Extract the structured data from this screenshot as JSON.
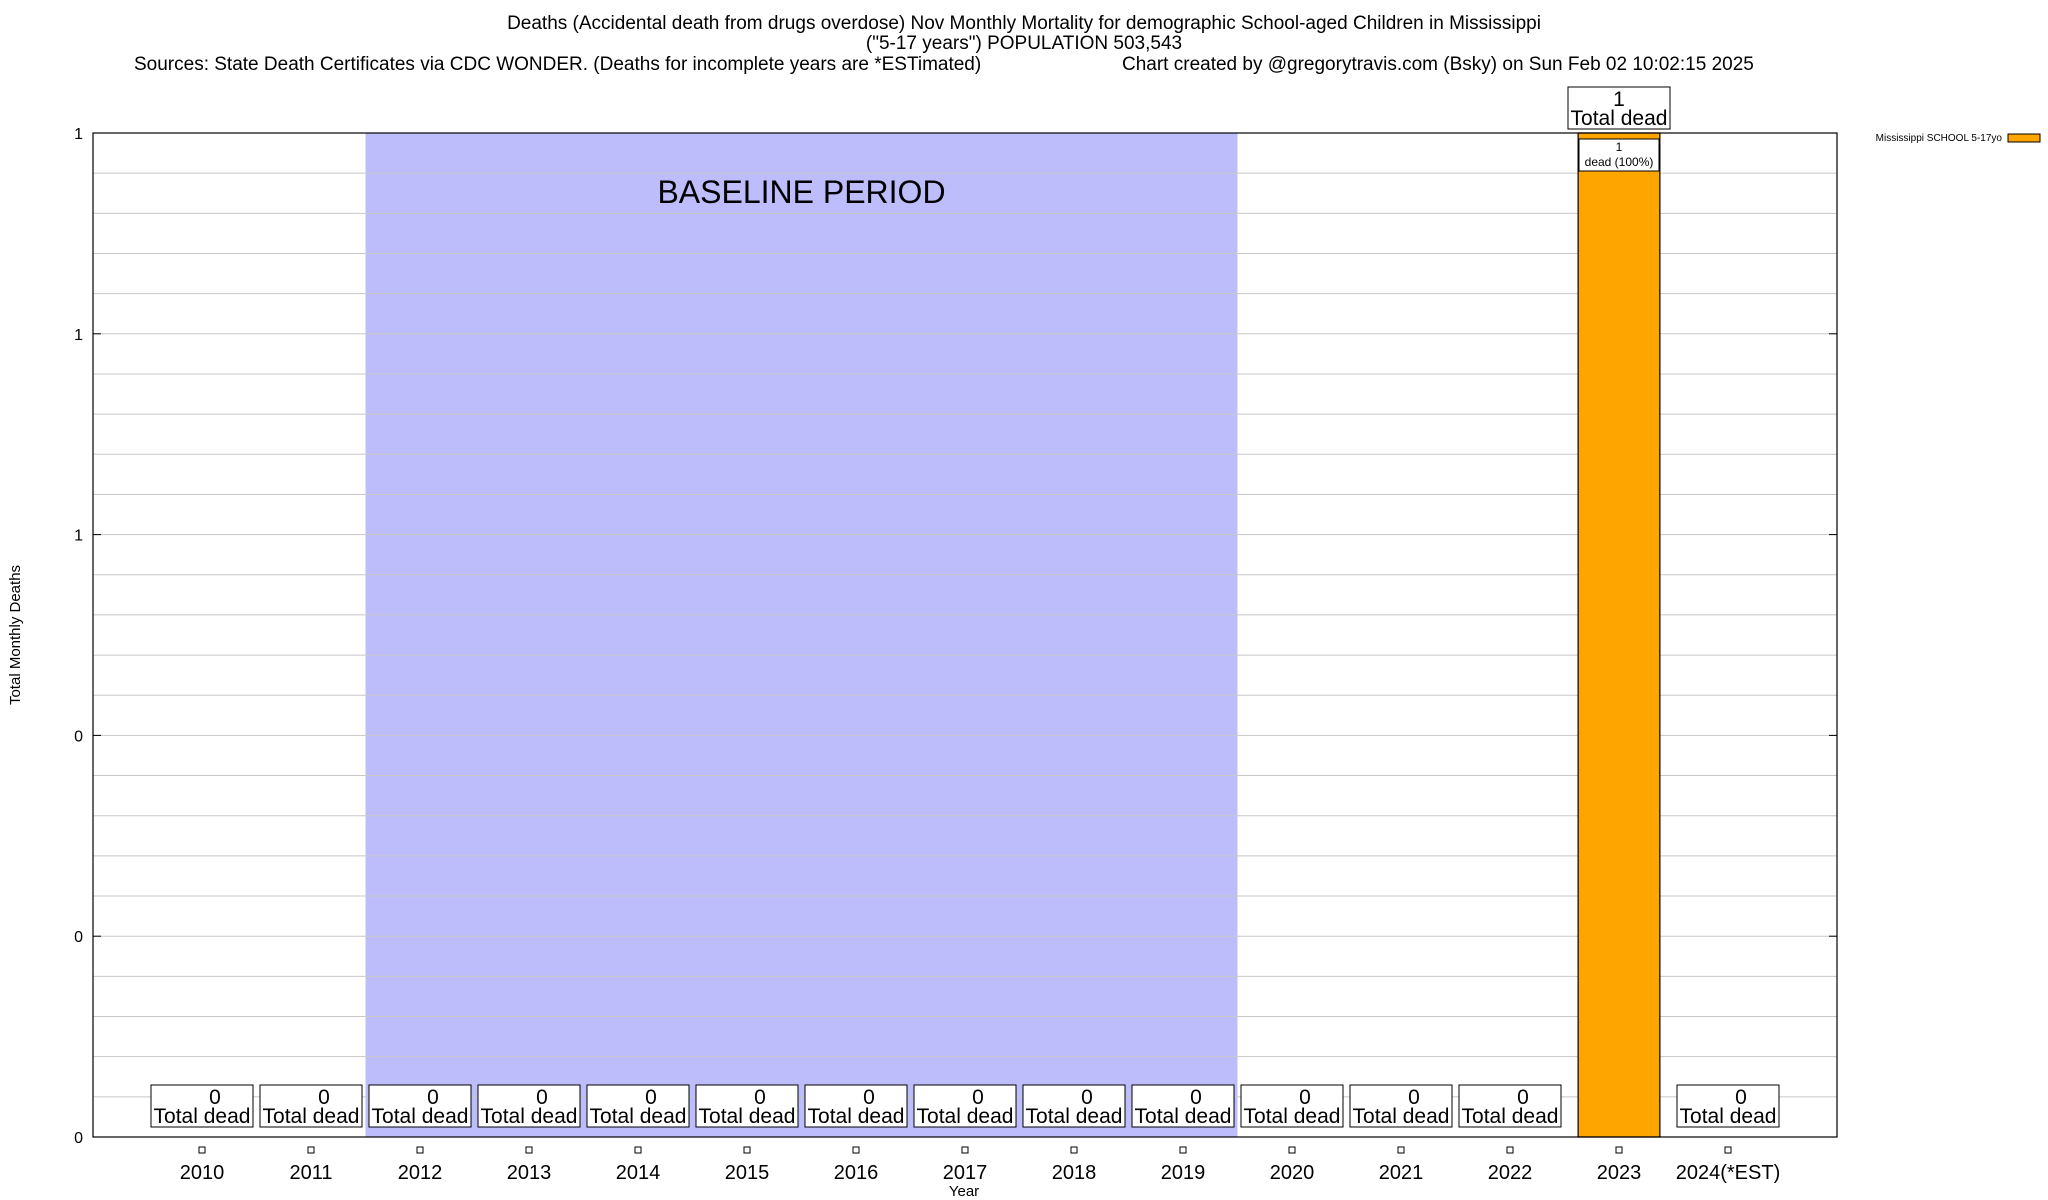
{
  "header": {
    "title_line1": "Deaths (Accidental death from drugs overdose) Nov Monthly Mortality for demographic School-aged Children in Mississippi",
    "title_line2": "(\"5-17 years\") POPULATION 503,543",
    "sources": "Sources: State Death Certificates via CDC WONDER. (Deaths for incomplete years are *ESTimated)",
    "credit": "Chart created by @gregorytravis.com (Bsky) on Sun Feb 02 10:02:15 2025"
  },
  "chart_data": {
    "type": "bar",
    "xlabel": "Year",
    "ylabel": "Total Monthly Deaths",
    "ylim": [
      0,
      1
    ],
    "y_tick_labels": [
      "0",
      "0",
      "0",
      "1",
      "1",
      "1"
    ],
    "categories": [
      "2010",
      "2011",
      "2012",
      "2013",
      "2014",
      "2015",
      "2016",
      "2017",
      "2018",
      "2019",
      "2020",
      "2021",
      "2022",
      "2023",
      "2024(*EST)"
    ],
    "series": [
      {
        "name": "Mississippi SCHOOL 5-17yo",
        "values": [
          0,
          0,
          0,
          0,
          0,
          0,
          0,
          0,
          0,
          0,
          0,
          0,
          0,
          1,
          0
        ]
      }
    ],
    "total_labels": [
      "0",
      "0",
      "0",
      "0",
      "0",
      "0",
      "0",
      "0",
      "0",
      "0",
      "0",
      "0",
      "0",
      "1",
      "0"
    ],
    "total_label_suffix": "Total dead",
    "segment_labels": [
      {
        "category": "2023",
        "line1": "1",
        "line2": "dead (100%)"
      }
    ],
    "baseline_period": {
      "label": "BASELINE PERIOD",
      "from": "2012",
      "to": "2019"
    },
    "grid": true,
    "legend_position": "top-right",
    "colors": {
      "bar": "#ffa500",
      "baseline": "#bdbdfb"
    }
  }
}
